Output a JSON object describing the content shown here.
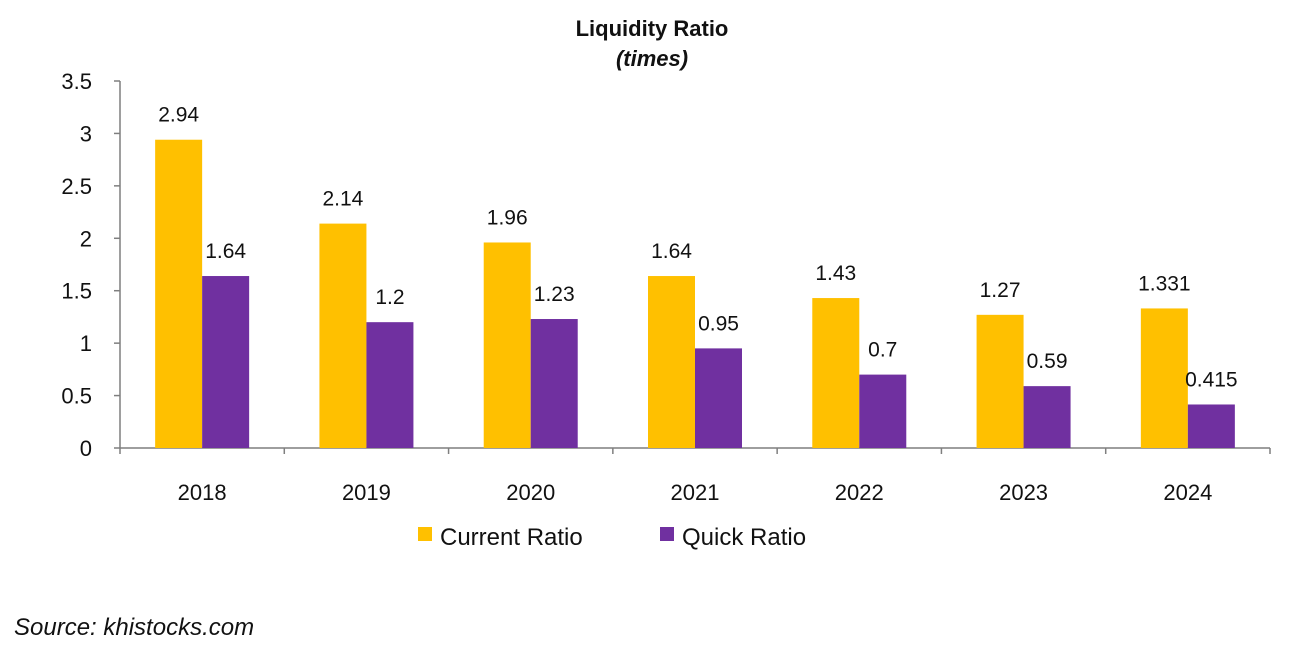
{
  "chart_data": {
    "type": "bar",
    "title": "Liquidity Ratio",
    "subtitle": "(times)",
    "categories": [
      "2018",
      "2019",
      "2020",
      "2021",
      "2022",
      "2023",
      "2024"
    ],
    "series": [
      {
        "name": "Current Ratio",
        "color": "#FFC000",
        "values": [
          2.94,
          2.14,
          1.96,
          1.64,
          1.43,
          1.27,
          1.331
        ],
        "labels": [
          "2.94",
          "2.14",
          "1.96",
          "1.64",
          "1.43",
          "1.27",
          "1.331"
        ]
      },
      {
        "name": "Quick Ratio",
        "color": "#7030A0",
        "values": [
          1.64,
          1.2,
          1.23,
          0.95,
          0.7,
          0.59,
          0.415
        ],
        "labels": [
          "1.64",
          "1.2",
          "1.23",
          "0.95",
          "0.7",
          "0.59",
          "0.415"
        ]
      }
    ],
    "ylim": [
      0,
      3.5
    ],
    "yticks": [
      "0",
      "0.5",
      "1",
      "1.5",
      "2",
      "2.5",
      "3",
      "3.5"
    ],
    "ytick_values": [
      0,
      0.5,
      1,
      1.5,
      2,
      2.5,
      3,
      3.5
    ],
    "grid": false,
    "legend_position": "bottom"
  },
  "source": "Source: khistocks.com"
}
